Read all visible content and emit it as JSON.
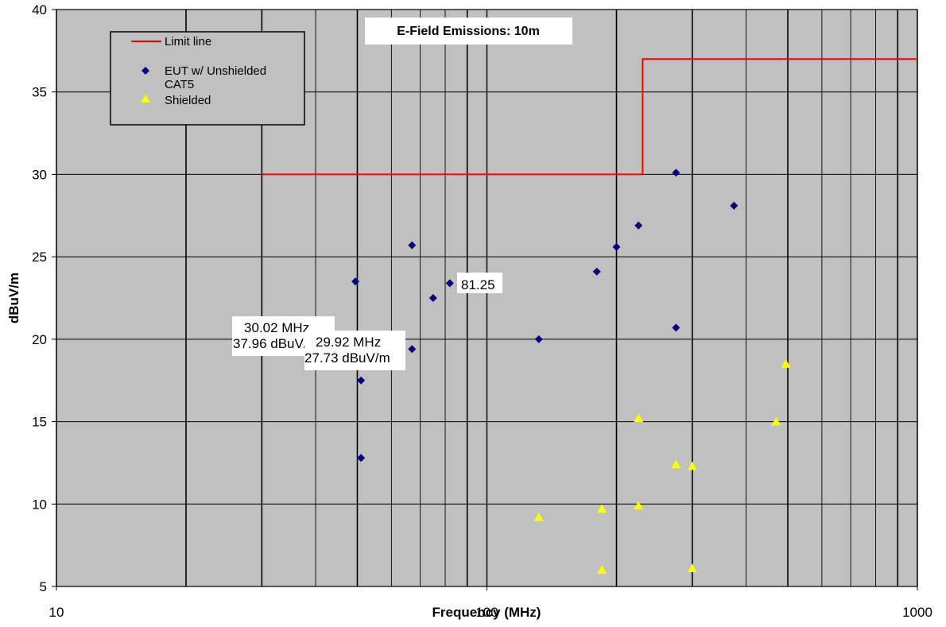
{
  "chart_data": {
    "type": "scatter",
    "title": "E-Field Emissions:  10m",
    "xlabel": "Frequency (MHz)",
    "ylabel": "dBuV/m",
    "x_scale": "log",
    "xlim": [
      10,
      1000
    ],
    "ylim": [
      5,
      40
    ],
    "x_ticks": [
      10,
      100,
      1000
    ],
    "x_tick_labels": [
      "10",
      "100",
      "1000"
    ],
    "y_ticks": [
      5,
      10,
      15,
      20,
      25,
      30,
      35,
      40
    ],
    "y_tick_labels": [
      "5",
      "10",
      "15",
      "20",
      "25",
      "30",
      "35",
      "40"
    ],
    "grid": true,
    "plot_background": "#c0c0c0",
    "legend_position": "top-left",
    "legend": [
      "Limit line",
      "EUT w/ Unshielded CAT5",
      "Shielded"
    ],
    "series": [
      {
        "name": "Limit line",
        "kind": "step-line",
        "color": "#ff0000",
        "x": [
          30,
          230,
          230,
          1000
        ],
        "y": [
          30,
          30,
          37,
          37
        ]
      },
      {
        "name": "EUT w/ Unshielded CAT5",
        "kind": "scatter",
        "marker": "diamond",
        "color": "#000080",
        "x": [
          49.5,
          51,
          51,
          67,
          67,
          75,
          82,
          132,
          180,
          200,
          225,
          275,
          275,
          375
        ],
        "y": [
          23.5,
          17.5,
          12.8,
          25.7,
          19.4,
          22.5,
          23.4,
          20.0,
          24.1,
          25.6,
          26.9,
          30.1,
          20.7,
          28.1
        ]
      },
      {
        "name": "Shielded",
        "kind": "scatter",
        "marker": "triangle",
        "color": "#ffff00",
        "x": [
          132,
          185,
          185,
          225,
          225,
          275,
          300,
          300,
          470,
          495
        ],
        "y": [
          9.2,
          9.7,
          6.0,
          15.2,
          9.9,
          12.4,
          12.3,
          6.1,
          15.0,
          18.5
        ]
      }
    ],
    "annotations": [
      {
        "lines": [
          "81.25"
        ]
      },
      {
        "lines": [
          "30.02 MHz",
          "37.96 dBuV/m"
        ]
      },
      {
        "lines": [
          "29.92 MHz",
          "27.73 dBuV/m"
        ]
      }
    ]
  }
}
